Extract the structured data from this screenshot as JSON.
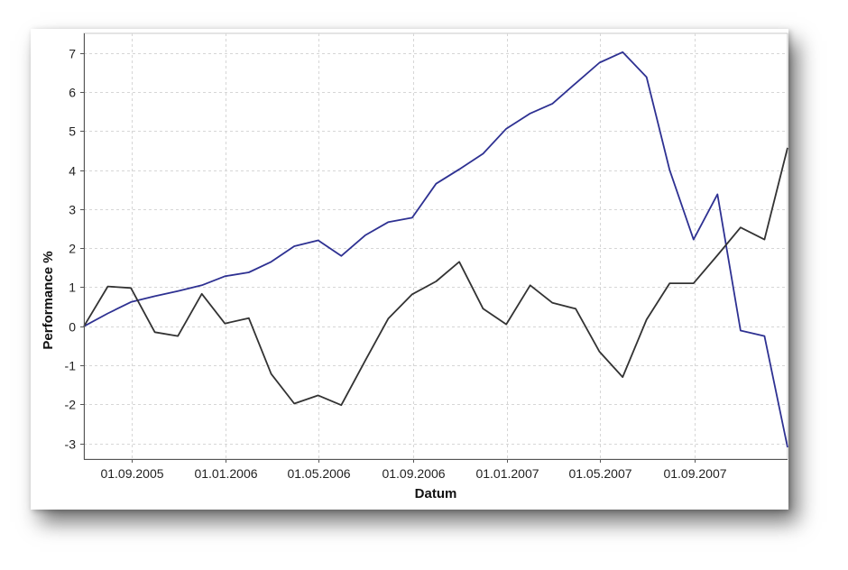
{
  "chart_data": {
    "type": "line",
    "xlabel": "Datum",
    "ylabel": "Performance %",
    "x_range": [
      "2005-07-01",
      "2007-12-31"
    ],
    "ylim": [
      -3.4,
      7.5
    ],
    "grid": true,
    "grid_style": "dashed",
    "x_ticks": [
      "2005-09-01",
      "2006-01-01",
      "2006-05-01",
      "2006-09-01",
      "2007-01-01",
      "2007-05-01",
      "2007-09-01"
    ],
    "x_tick_labels": [
      "01.09.2005",
      "01.01.2006",
      "01.05.2006",
      "01.09.2006",
      "01.01.2007",
      "01.05.2007",
      "01.09.2007"
    ],
    "y_ticks": [
      7,
      6,
      5,
      4,
      3,
      2,
      1,
      0,
      -1,
      -2,
      -3
    ],
    "y_tick_labels": [
      "7",
      "6",
      "5",
      "4",
      "3",
      "2",
      "1",
      "0",
      "-1",
      "-2",
      "-3"
    ],
    "x": [
      "2005-07-01",
      "2005-08-01",
      "2005-08-31",
      "2005-10-01",
      "2005-10-31",
      "2005-12-01",
      "2005-12-31",
      "2006-01-31",
      "2006-03-01",
      "2006-03-31",
      "2006-05-01",
      "2006-05-31",
      "2006-07-01",
      "2006-07-31",
      "2006-08-31",
      "2006-10-01",
      "2006-10-31",
      "2006-12-01",
      "2006-12-31",
      "2007-01-31",
      "2007-03-01",
      "2007-03-31",
      "2007-05-01",
      "2007-05-31",
      "2007-07-01",
      "2007-07-31",
      "2007-08-31",
      "2007-10-01",
      "2007-10-31",
      "2007-12-01",
      "2007-12-31"
    ],
    "series": [
      {
        "color": "#2e3192",
        "values": [
          0.0,
          0.33,
          0.62,
          0.77,
          0.9,
          1.05,
          1.28,
          1.38,
          1.65,
          2.05,
          2.2,
          1.8,
          2.33,
          2.67,
          2.78,
          3.65,
          4.02,
          4.42,
          5.06,
          5.45,
          5.7,
          6.22,
          6.75,
          7.02,
          6.38,
          4.0,
          2.22,
          3.38,
          -0.11,
          -0.25,
          -3.1
        ]
      },
      {
        "color": "#333333",
        "values": [
          0.0,
          1.02,
          0.98,
          -0.15,
          -0.25,
          0.83,
          0.07,
          0.21,
          -1.22,
          -1.98,
          -1.77,
          -2.02,
          -0.88,
          0.2,
          0.82,
          1.15,
          1.65,
          0.45,
          0.05,
          1.05,
          0.6,
          0.45,
          -0.65,
          -1.3,
          0.17,
          1.1,
          1.1,
          1.82,
          2.53,
          2.22,
          4.57
        ]
      }
    ]
  }
}
